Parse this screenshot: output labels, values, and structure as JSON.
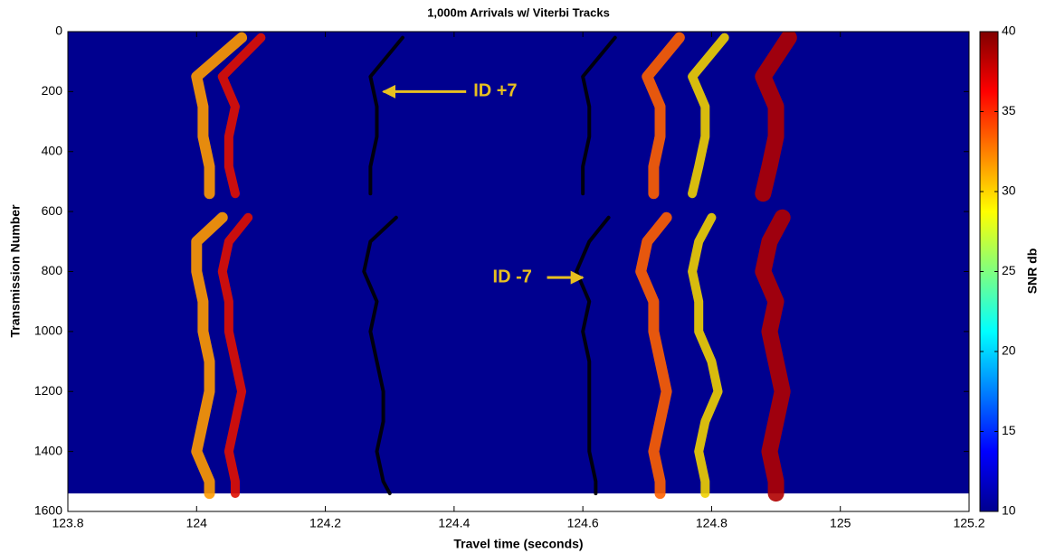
{
  "chart_data": {
    "type": "track",
    "title": "1,000m Arrivals w/ Viterbi Tracks",
    "xlabel": "Travel time (seconds)",
    "ylabel": "Transmission Number",
    "colorbar_label": "SNR db",
    "xlim": [
      123.8,
      125.2
    ],
    "xticks": [
      123.8,
      124,
      124.2,
      124.4,
      124.6,
      124.8,
      125,
      125.2
    ],
    "ylim": [
      0,
      1600
    ],
    "yticks": [
      0,
      200,
      400,
      600,
      800,
      1000,
      1200,
      1400,
      1600
    ],
    "y_reversed": true,
    "image_ylim": [
      0,
      1540
    ],
    "background_color": "#00008f",
    "clim": [
      10,
      40
    ],
    "cticks": [
      10,
      15,
      20,
      25,
      30,
      35,
      40
    ],
    "y": [
      20,
      150,
      250,
      350,
      450,
      540,
      580,
      620,
      700,
      800,
      900,
      1000,
      1100,
      1200,
      1300,
      1400,
      1500,
      1540
    ],
    "series": [
      {
        "color": "#ff9a00",
        "width": 12,
        "values": [
          124.07,
          124.0,
          124.01,
          124.01,
          124.02,
          124.02,
          null,
          124.04,
          124.0,
          124.0,
          124.01,
          124.01,
          124.02,
          124.02,
          124.01,
          124.0,
          124.02,
          124.02
        ]
      },
      {
        "color": "#e01000",
        "width": 10,
        "values": [
          124.1,
          124.04,
          124.06,
          124.05,
          124.05,
          124.06,
          null,
          124.08,
          124.05,
          124.04,
          124.05,
          124.05,
          124.06,
          124.07,
          124.06,
          124.05,
          124.06,
          124.06
        ]
      },
      {
        "color": "#ff6000",
        "width": 12,
        "values": [
          124.75,
          124.7,
          124.72,
          124.72,
          124.71,
          124.71,
          null,
          124.73,
          124.7,
          124.69,
          124.71,
          124.71,
          124.72,
          124.73,
          124.72,
          124.71,
          124.72,
          124.72
        ]
      },
      {
        "color": "#f0d000",
        "width": 10,
        "values": [
          124.82,
          124.77,
          124.79,
          124.79,
          124.78,
          124.77,
          null,
          124.8,
          124.78,
          124.77,
          124.78,
          124.78,
          124.8,
          124.81,
          124.79,
          124.78,
          124.79,
          124.79
        ]
      },
      {
        "color": "#b00000",
        "width": 18,
        "values": [
          124.92,
          124.88,
          124.9,
          124.9,
          124.89,
          124.88,
          null,
          124.91,
          124.89,
          124.88,
          124.9,
          124.89,
          124.9,
          124.91,
          124.9,
          124.89,
          124.9,
          124.9
        ]
      },
      {
        "color": "#000000",
        "width": 4,
        "values": [
          124.32,
          124.27,
          124.28,
          124.28,
          124.27,
          124.27,
          null,
          124.31,
          124.27,
          124.26,
          124.28,
          124.27,
          124.28,
          124.29,
          124.29,
          124.28,
          124.29,
          124.3
        ]
      },
      {
        "color": "#000000",
        "width": 4,
        "values": [
          124.65,
          124.6,
          124.61,
          124.61,
          124.6,
          124.6,
          null,
          124.64,
          124.61,
          124.59,
          124.61,
          124.6,
          124.61,
          124.61,
          124.61,
          124.61,
          124.62,
          124.62
        ]
      }
    ],
    "annotations": [
      {
        "text": "ID +7",
        "x": 124.43,
        "y": 200,
        "arrow_to": 124.29
      },
      {
        "text": "ID -7",
        "x": 124.46,
        "y": 820,
        "arrow_to": 124.6
      }
    ],
    "annotation_color": "#e8c020"
  }
}
